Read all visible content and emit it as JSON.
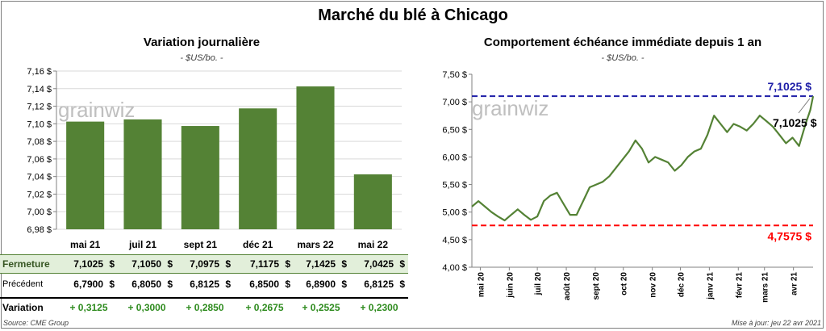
{
  "title": "Marché du blé à Chicago",
  "left": {
    "title": "Variation journalière",
    "unit": "- $US/bo. -",
    "watermark": "grainwiz"
  },
  "right": {
    "title": "Comportement échéance immédiate depuis 1 an",
    "unit": "- $US/bo. -",
    "watermark": "grainwiz"
  },
  "table": {
    "row_labels": {
      "ferm": "Fermeture",
      "prec": "Précédent",
      "var": "Variation"
    },
    "currency": "$",
    "fermeture": [
      "7,1025",
      "7,1050",
      "7,0975",
      "7,1175",
      "7,1425",
      "7,0425"
    ],
    "precedent": [
      "6,7900",
      "6,8050",
      "6,8125",
      "6,8500",
      "6,8900",
      "6,8125"
    ],
    "variation": [
      "+ 0,3125",
      "+ 0,3000",
      "+ 0,2850",
      "+ 0,2675",
      "+ 0,2525",
      "+ 0,2300"
    ]
  },
  "footer": {
    "source": "Source: CME Group",
    "update": "Mise à jour: jeu 22 avr 2021"
  },
  "colors": {
    "bar": "#548235",
    "line": "#548235",
    "high": "#1f1fa8",
    "low": "#ff0000",
    "grid": "#d9d9d9",
    "watermark": "#bfbfbf"
  },
  "chart_data": [
    {
      "type": "bar",
      "categories": [
        "mai 21",
        "juil 21",
        "sept 21",
        "déc 21",
        "mars 22",
        "mai 22"
      ],
      "values": [
        7.1025,
        7.105,
        7.0975,
        7.1175,
        7.1425,
        7.0425
      ],
      "ylim": [
        6.98,
        7.16
      ],
      "yticks": [
        6.98,
        7.0,
        7.02,
        7.04,
        7.06,
        7.08,
        7.1,
        7.12,
        7.14,
        7.16
      ],
      "ytick_labels": [
        "6,98 $",
        "7,00 $",
        "7,02 $",
        "7,04 $",
        "7,06 $",
        "7,08 $",
        "7,10 $",
        "7,12 $",
        "7,14 $",
        "7,16 $"
      ],
      "grid": true
    },
    {
      "type": "line",
      "ylim": [
        4.0,
        7.5
      ],
      "yticks": [
        4.0,
        4.5,
        5.0,
        5.5,
        6.0,
        6.5,
        7.0,
        7.5
      ],
      "ytick_labels": [
        "4,00 $",
        "4,50 $",
        "5,00 $",
        "5,50 $",
        "6,00 $",
        "6,50 $",
        "7,00 $",
        "7,50 $"
      ],
      "xlim": [
        "2020-04-22",
        "2021-04-22"
      ],
      "xticks": [
        "2020-05-01",
        "2020-06-01",
        "2020-07-01",
        "2020-08-01",
        "2020-09-01",
        "2020-10-01",
        "2020-11-01",
        "2020-12-01",
        "2021-01-01",
        "2021-02-01",
        "2021-03-01",
        "2021-04-01"
      ],
      "xtick_labels": [
        "mai 20",
        "juin 20",
        "juil 20",
        "août 20",
        "sept 20",
        "oct 20",
        "nov 20",
        "déc 20",
        "janv 21",
        "févr 21",
        "mars 21",
        "avr 21"
      ],
      "grid": false,
      "series": [
        {
          "x": [
            "2020-04-22",
            "2020-04-29",
            "2020-05-06",
            "2020-05-13",
            "2020-05-20",
            "2020-05-27",
            "2020-06-03",
            "2020-06-10",
            "2020-06-17",
            "2020-06-24",
            "2020-07-01",
            "2020-07-08",
            "2020-07-15",
            "2020-07-22",
            "2020-07-29",
            "2020-08-05",
            "2020-08-12",
            "2020-08-19",
            "2020-08-26",
            "2020-09-02",
            "2020-09-09",
            "2020-09-16",
            "2020-09-23",
            "2020-09-30",
            "2020-10-07",
            "2020-10-14",
            "2020-10-21",
            "2020-10-28",
            "2020-11-04",
            "2020-11-11",
            "2020-11-18",
            "2020-11-25",
            "2020-12-02",
            "2020-12-09",
            "2020-12-16",
            "2020-12-23",
            "2020-12-30",
            "2021-01-06",
            "2021-01-13",
            "2021-01-20",
            "2021-01-27",
            "2021-02-03",
            "2021-02-10",
            "2021-02-17",
            "2021-02-24",
            "2021-03-03",
            "2021-03-10",
            "2021-03-17",
            "2021-03-24",
            "2021-03-31",
            "2021-04-07",
            "2021-04-14",
            "2021-04-19",
            "2021-04-22"
          ],
          "y": [
            5.1,
            5.2,
            5.1,
            5.0,
            4.92,
            4.85,
            4.95,
            5.05,
            4.95,
            4.86,
            4.92,
            5.2,
            5.3,
            5.35,
            5.15,
            4.95,
            4.95,
            5.2,
            5.45,
            5.5,
            5.55,
            5.65,
            5.8,
            5.95,
            6.1,
            6.3,
            6.15,
            5.9,
            6.0,
            5.95,
            5.9,
            5.75,
            5.85,
            6.0,
            6.1,
            6.15,
            6.4,
            6.75,
            6.6,
            6.45,
            6.6,
            6.55,
            6.48,
            6.6,
            6.75,
            6.65,
            6.55,
            6.4,
            6.25,
            6.35,
            6.2,
            6.6,
            6.85,
            7.1025
          ]
        }
      ],
      "hlines": [
        {
          "y": 7.1025,
          "label": "7,1025 $"
        },
        {
          "y": 4.7575,
          "label": "4,7575 $"
        }
      ],
      "annotation": "7,1025 $"
    }
  ]
}
